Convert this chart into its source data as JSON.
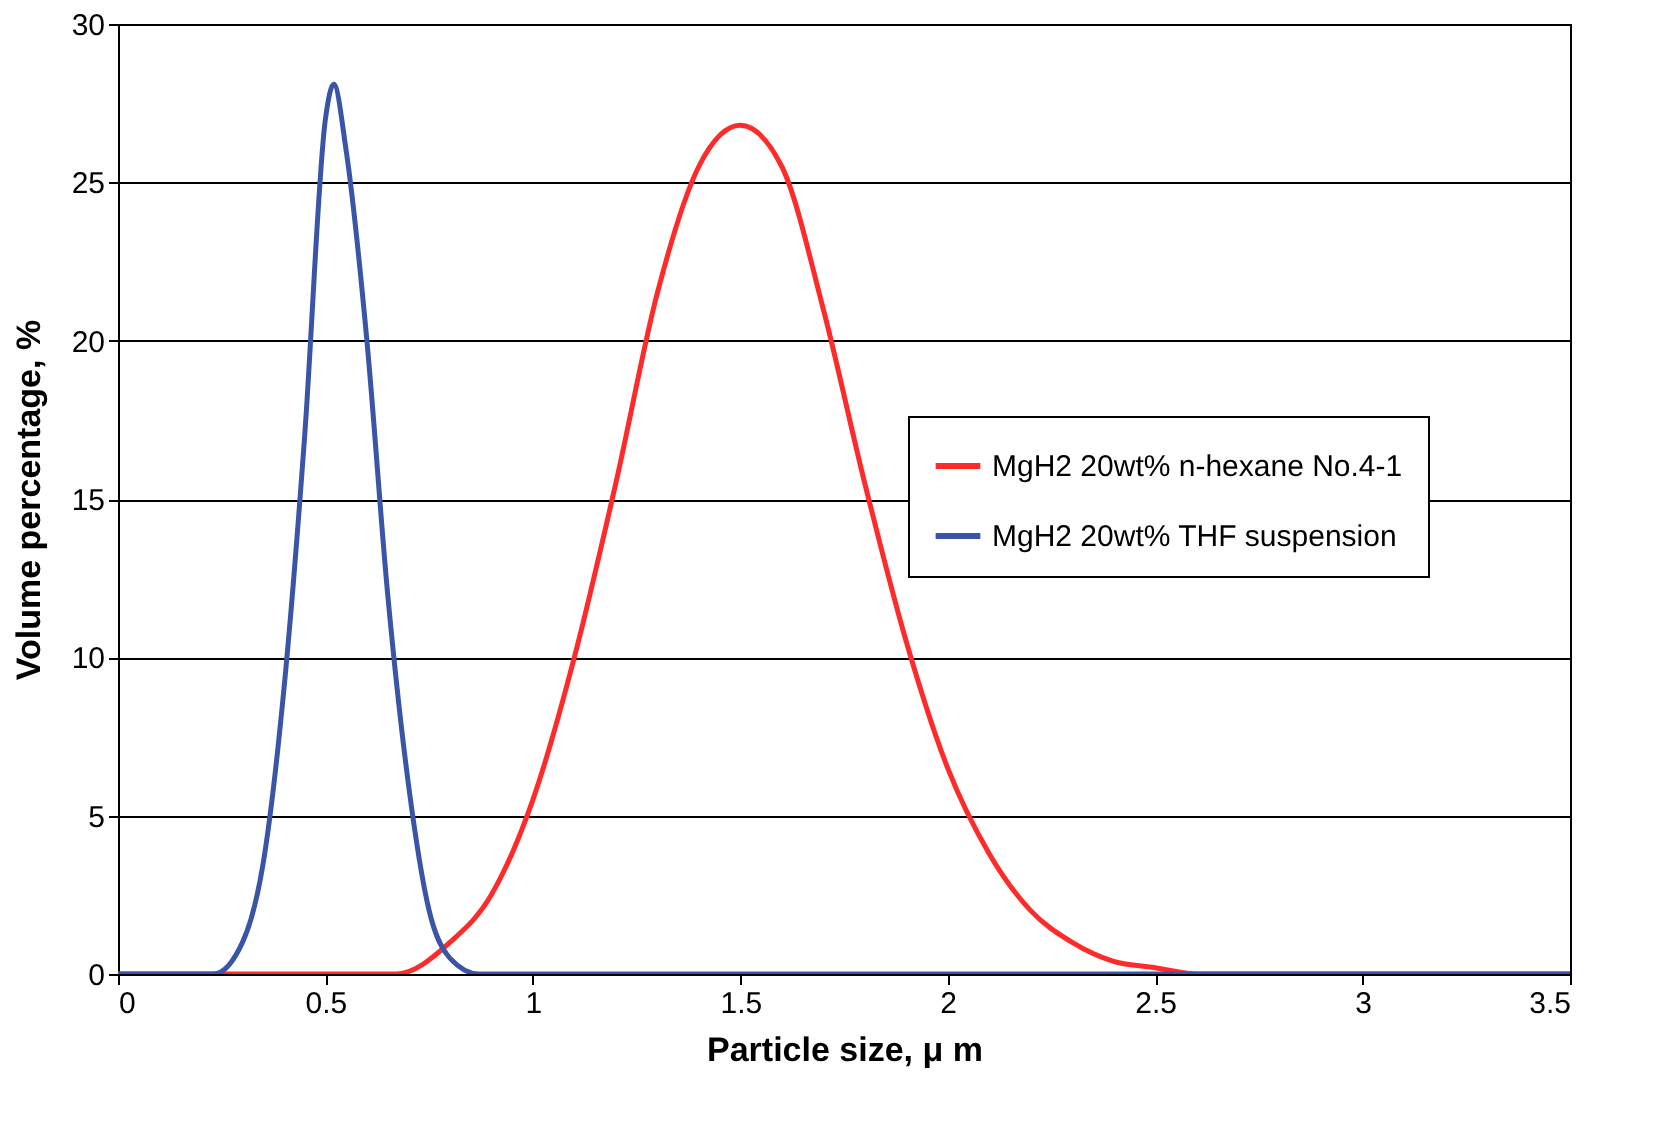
{
  "chart_data": {
    "type": "line",
    "xlabel": "Particle size, μ m",
    "ylabel": "Volume percentage, %",
    "xlim": [
      0,
      3.5
    ],
    "ylim": [
      0,
      30
    ],
    "xticks": [
      0,
      0.5,
      1,
      1.5,
      2,
      2.5,
      3,
      3.5
    ],
    "yticks": [
      0,
      5,
      10,
      15,
      20,
      25,
      30
    ],
    "grid": "y",
    "legend": "right",
    "marker": "none",
    "line_style": "solid",
    "series": [
      {
        "name": "MgH2 20wt% n-hexane No.4-1",
        "color": "#ff2a2a",
        "x": [
          0,
          0.67,
          0.8,
          0.9,
          1.0,
          1.1,
          1.2,
          1.3,
          1.4,
          1.5,
          1.6,
          1.7,
          1.8,
          1.9,
          2.0,
          2.1,
          2.2,
          2.3,
          2.4,
          2.5,
          2.6,
          3.5
        ],
        "values": [
          0,
          0,
          1,
          2.5,
          5.5,
          10,
          15.5,
          21.5,
          25.5,
          26.8,
          25.5,
          21,
          15.5,
          10.5,
          6.5,
          3.8,
          2,
          1,
          0.4,
          0.2,
          0,
          0
        ]
      },
      {
        "name": "MgH2 20wt% THF suspension",
        "color": "#3a55a8",
        "x": [
          0,
          0.23,
          0.3,
          0.35,
          0.4,
          0.45,
          0.5,
          0.52,
          0.55,
          0.6,
          0.65,
          0.7,
          0.75,
          0.8,
          0.87,
          3.5
        ],
        "values": [
          0,
          0,
          1,
          3.5,
          9,
          17,
          27,
          28.1,
          26,
          20,
          12,
          6,
          2,
          0.5,
          0,
          0
        ]
      }
    ]
  }
}
